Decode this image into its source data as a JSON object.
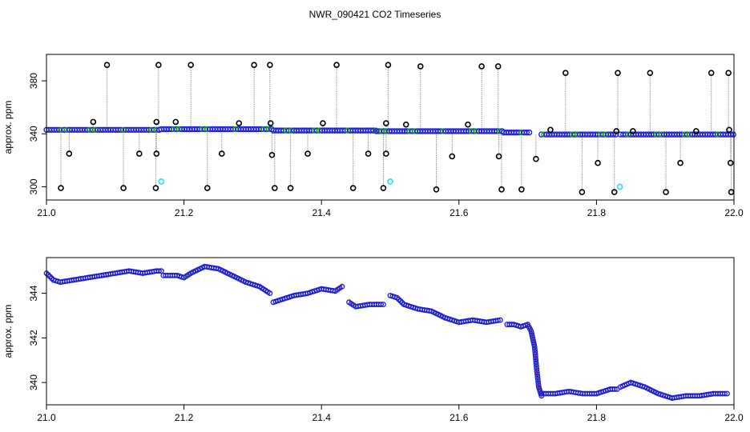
{
  "title": "NWR_090421  CO2 Timeseries",
  "colors": {
    "outlier": "#000000",
    "flagged": "#40e0e0",
    "series_blue": "#1f1fd0",
    "series_green": "#10a010",
    "series_red": "#d01010",
    "drop_line": "#999999"
  },
  "chart_data": [
    {
      "type": "scatter",
      "ylabel": "approx. ppm",
      "xlabel": "",
      "xlim": [
        21.0,
        22.0
      ],
      "ylim": [
        290,
        400
      ],
      "x_ticks": [
        "21.0",
        "21.2",
        "21.4",
        "21.6",
        "21.8",
        "22.0"
      ],
      "y_ticks": [
        "300",
        "340",
        "380"
      ],
      "baseline_segments": [
        {
          "x": [
            21.0,
            21.167
          ],
          "y": 343
        },
        {
          "x": [
            21.167,
            21.33
          ],
          "y": 343.5
        },
        {
          "x": [
            21.33,
            21.48
          ],
          "y": 342.5
        },
        {
          "x": [
            21.48,
            21.665
          ],
          "y": 342
        },
        {
          "x": [
            21.665,
            21.705
          ],
          "y": 341
        },
        {
          "x": [
            21.72,
            21.83
          ],
          "y": 339.5
        },
        {
          "x": [
            21.835,
            22.0
          ],
          "y": 339.5
        }
      ],
      "outliers_high": [
        {
          "x": 21.088,
          "y": 392
        },
        {
          "x": 21.163,
          "y": 392
        },
        {
          "x": 21.21,
          "y": 392
        },
        {
          "x": 21.302,
          "y": 392
        },
        {
          "x": 21.325,
          "y": 392
        },
        {
          "x": 21.422,
          "y": 392
        },
        {
          "x": 21.497,
          "y": 392
        },
        {
          "x": 21.544,
          "y": 391
        },
        {
          "x": 21.633,
          "y": 391
        },
        {
          "x": 21.657,
          "y": 391
        },
        {
          "x": 21.755,
          "y": 386
        },
        {
          "x": 21.831,
          "y": 386
        },
        {
          "x": 21.878,
          "y": 386
        },
        {
          "x": 21.967,
          "y": 386
        },
        {
          "x": 21.992,
          "y": 386
        }
      ],
      "outliers_mid": [
        {
          "x": 21.033,
          "y": 325
        },
        {
          "x": 21.068,
          "y": 349
        },
        {
          "x": 21.135,
          "y": 325
        },
        {
          "x": 21.16,
          "y": 349
        },
        {
          "x": 21.16,
          "y": 325
        },
        {
          "x": 21.188,
          "y": 349
        },
        {
          "x": 21.255,
          "y": 325
        },
        {
          "x": 21.28,
          "y": 348
        },
        {
          "x": 21.326,
          "y": 348
        },
        {
          "x": 21.328,
          "y": 324
        },
        {
          "x": 21.38,
          "y": 325
        },
        {
          "x": 21.402,
          "y": 348
        },
        {
          "x": 21.468,
          "y": 325
        },
        {
          "x": 21.494,
          "y": 348
        },
        {
          "x": 21.494,
          "y": 325
        },
        {
          "x": 21.523,
          "y": 347
        },
        {
          "x": 21.59,
          "y": 323
        },
        {
          "x": 21.613,
          "y": 347
        },
        {
          "x": 21.658,
          "y": 323
        },
        {
          "x": 21.712,
          "y": 321
        },
        {
          "x": 21.733,
          "y": 343
        },
        {
          "x": 21.802,
          "y": 318
        },
        {
          "x": 21.829,
          "y": 342
        },
        {
          "x": 21.853,
          "y": 342
        },
        {
          "x": 21.922,
          "y": 318
        },
        {
          "x": 21.945,
          "y": 342
        },
        {
          "x": 21.993,
          "y": 343
        },
        {
          "x": 21.995,
          "y": 318
        }
      ],
      "outliers_low": [
        {
          "x": 21.021,
          "y": 299
        },
        {
          "x": 21.112,
          "y": 299
        },
        {
          "x": 21.159,
          "y": 299
        },
        {
          "x": 21.234,
          "y": 299
        },
        {
          "x": 21.332,
          "y": 299
        },
        {
          "x": 21.355,
          "y": 299
        },
        {
          "x": 21.446,
          "y": 299
        },
        {
          "x": 21.49,
          "y": 299
        },
        {
          "x": 21.567,
          "y": 298
        },
        {
          "x": 21.662,
          "y": 298
        },
        {
          "x": 21.691,
          "y": 298
        },
        {
          "x": 21.779,
          "y": 296
        },
        {
          "x": 21.826,
          "y": 296
        },
        {
          "x": 21.901,
          "y": 296
        },
        {
          "x": 21.996,
          "y": 296
        }
      ],
      "flagged_points": [
        {
          "x": 21.167,
          "y": 304
        },
        {
          "x": 21.5,
          "y": 304
        },
        {
          "x": 21.834,
          "y": 300
        }
      ]
    },
    {
      "type": "line",
      "ylabel": "approx. ppm",
      "xlabel": "",
      "xlim": [
        21.0,
        22.0
      ],
      "ylim": [
        339.0,
        345.6
      ],
      "x_ticks": [
        "21.0",
        "21.2",
        "21.4",
        "21.6",
        "21.8",
        "22.0"
      ],
      "y_ticks": [
        "340",
        "342",
        "344"
      ],
      "series": [
        {
          "x": [
            21.0,
            21.01,
            21.02,
            21.04,
            21.06,
            21.08,
            21.1,
            21.12,
            21.14,
            21.16,
            21.167
          ],
          "y": [
            344.9,
            344.6,
            344.5,
            344.6,
            344.7,
            344.8,
            344.9,
            345.0,
            344.9,
            345.0,
            345.0
          ]
        },
        {
          "x": [
            21.17,
            21.19,
            21.2,
            21.21,
            21.23,
            21.25,
            21.27,
            21.29,
            21.31,
            21.325
          ],
          "y": [
            344.8,
            344.8,
            344.7,
            344.9,
            345.2,
            345.1,
            344.8,
            344.5,
            344.3,
            344.0
          ]
        },
        {
          "x": [
            21.33,
            21.34,
            21.36,
            21.38,
            21.4,
            21.42,
            21.43
          ],
          "y": [
            343.6,
            343.7,
            343.9,
            344.0,
            344.2,
            344.1,
            344.3
          ]
        },
        {
          "x": [
            21.44,
            21.45,
            21.47,
            21.49
          ],
          "y": [
            343.6,
            343.4,
            343.5,
            343.5
          ]
        },
        {
          "x": [
            21.5,
            21.51,
            21.52,
            21.54,
            21.56,
            21.58,
            21.6,
            21.62,
            21.64,
            21.66
          ],
          "y": [
            343.9,
            343.8,
            343.5,
            343.3,
            343.2,
            342.9,
            342.7,
            342.8,
            342.7,
            342.8
          ]
        },
        {
          "x": [
            21.67,
            21.68,
            21.69,
            21.7,
            21.705,
            21.71,
            21.713,
            21.716,
            21.72
          ],
          "y": [
            342.6,
            342.6,
            342.5,
            342.6,
            342.3,
            341.6,
            340.6,
            339.8,
            339.4
          ]
        },
        {
          "x": [
            21.72,
            21.74,
            21.76,
            21.78,
            21.8,
            21.82,
            21.83
          ],
          "y": [
            339.5,
            339.5,
            339.6,
            339.5,
            339.5,
            339.7,
            339.7
          ]
        },
        {
          "x": [
            21.835,
            21.85,
            21.87,
            21.89,
            21.91,
            21.93,
            21.95,
            21.97,
            21.99
          ],
          "y": [
            339.8,
            340.0,
            339.8,
            339.5,
            339.3,
            339.4,
            339.4,
            339.5,
            339.5
          ]
        }
      ]
    }
  ]
}
